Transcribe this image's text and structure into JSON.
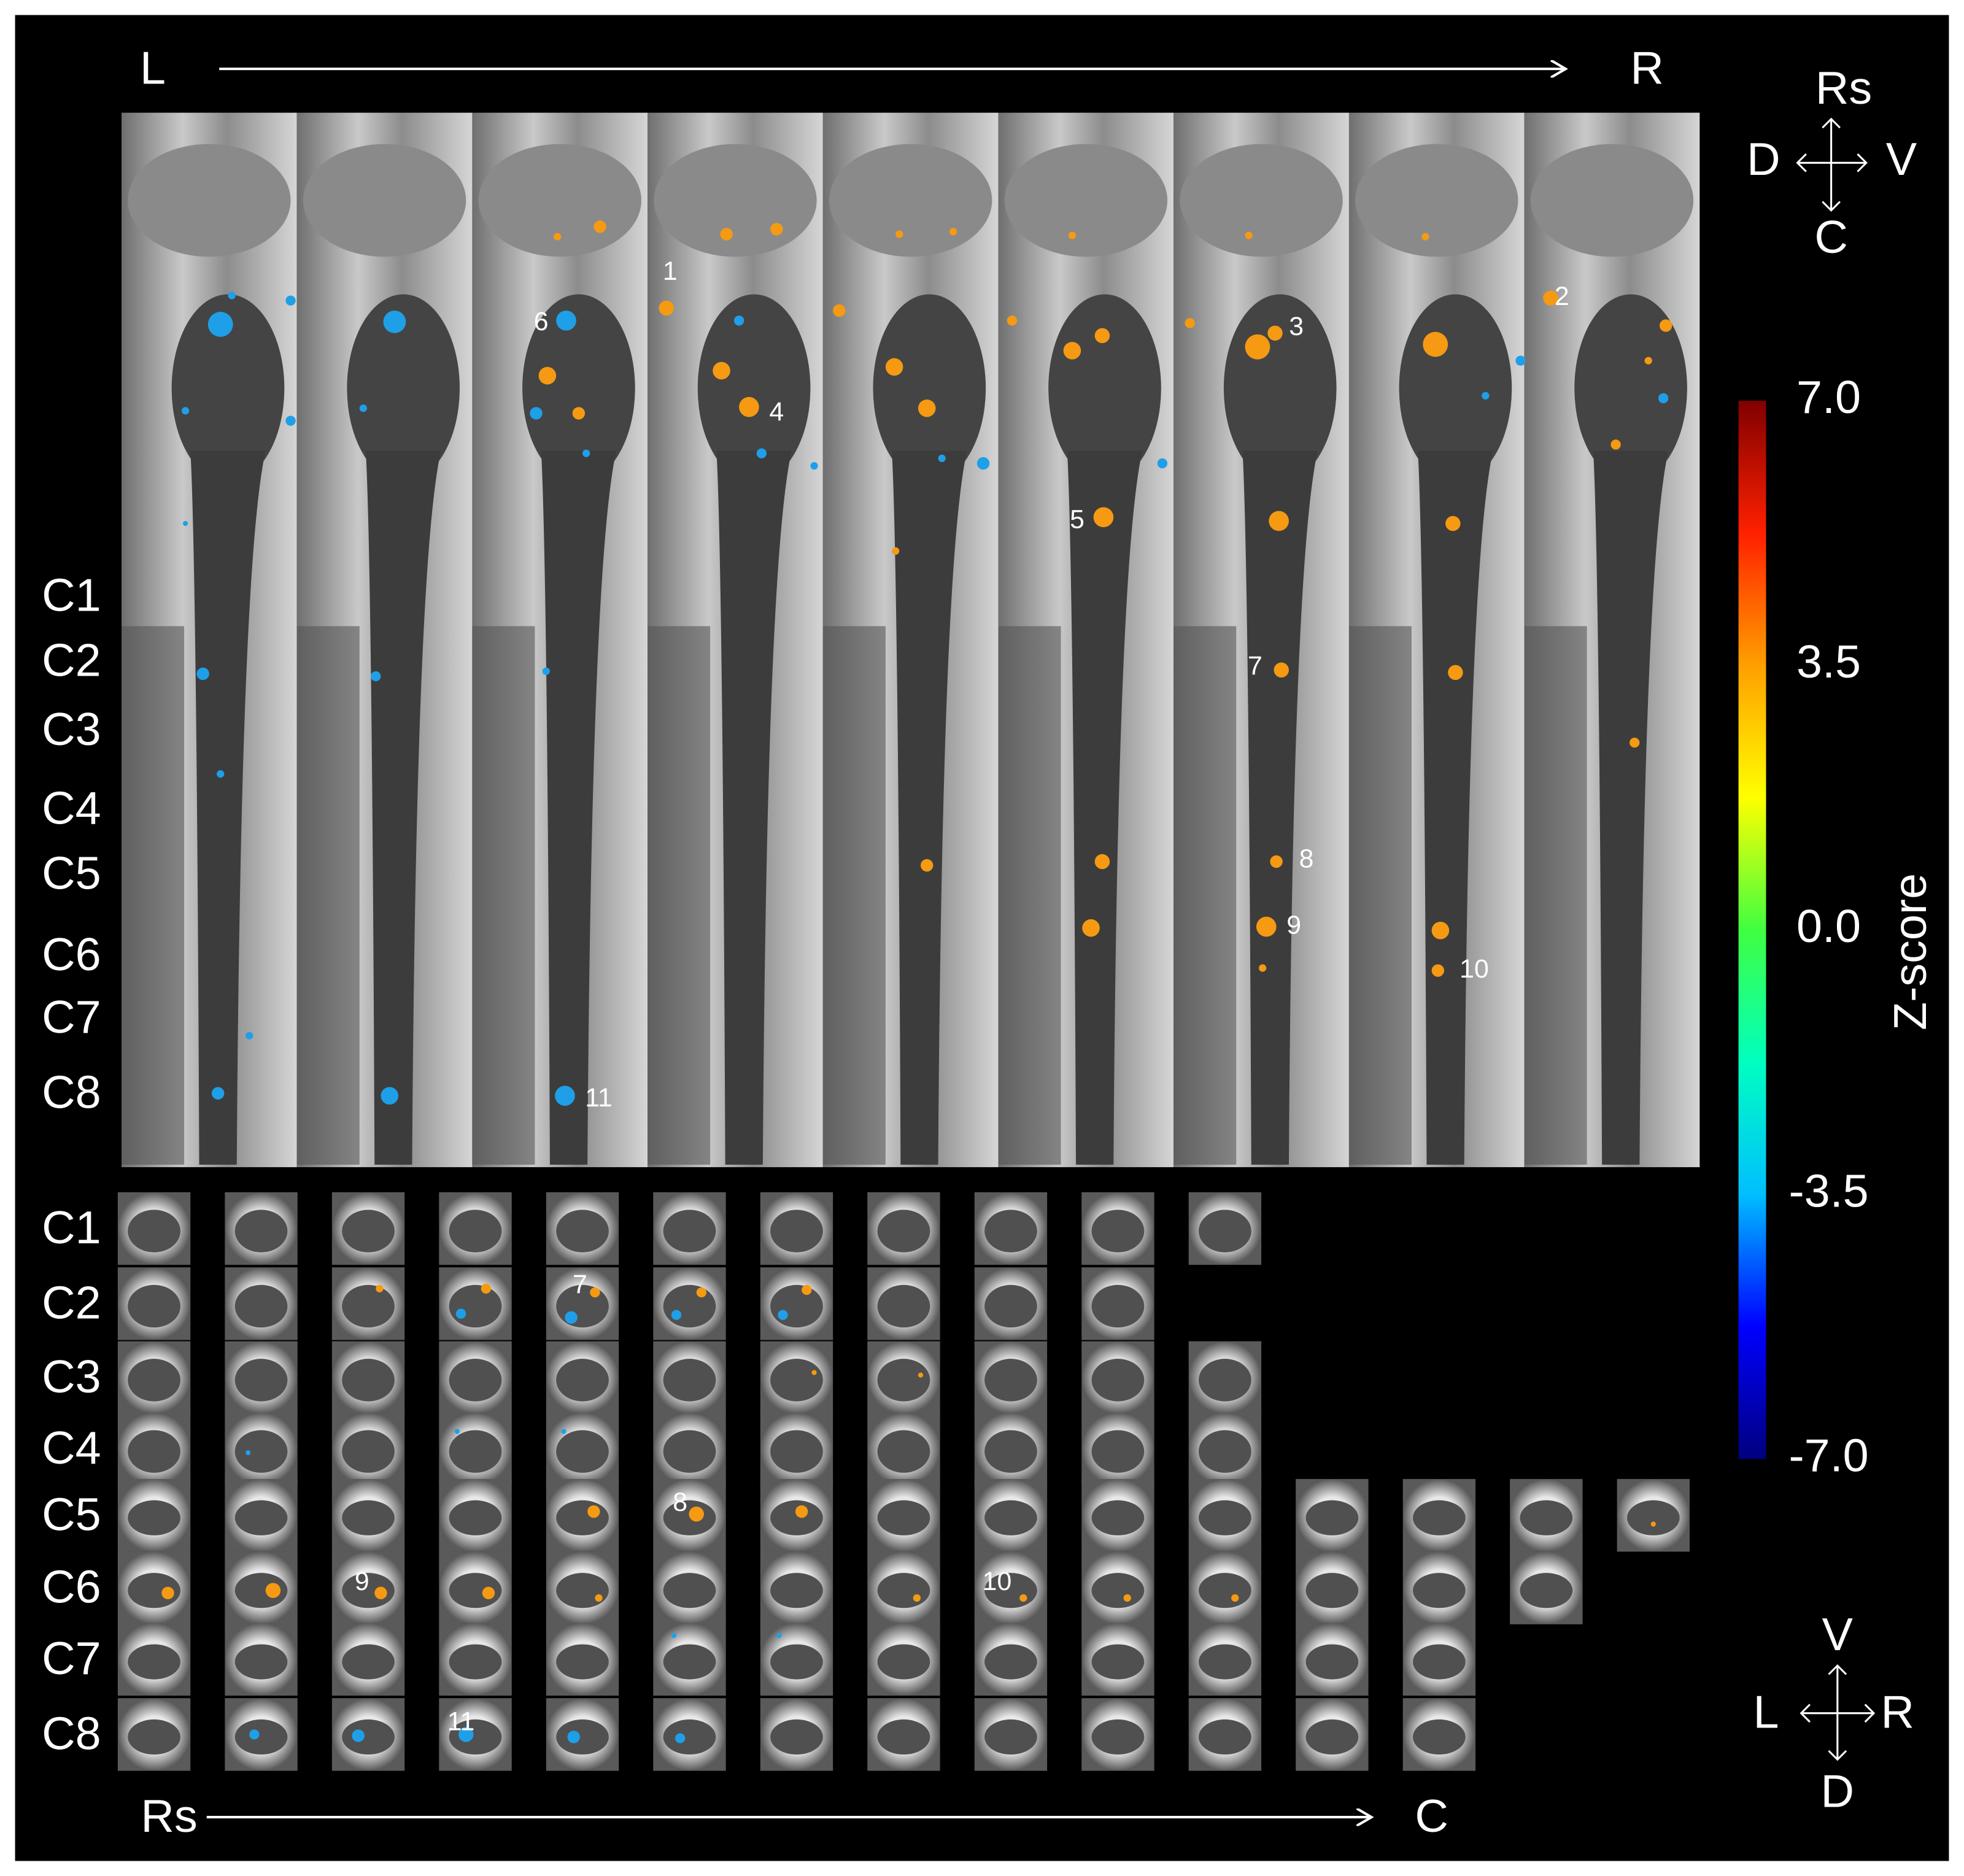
{
  "top_axis": {
    "start": "L",
    "end": "R"
  },
  "top_orientation": {
    "up": "Rs",
    "left": "D",
    "right": "V",
    "down": "C"
  },
  "sagittal": {
    "levels": [
      "C1",
      "C2",
      "C3",
      "C4",
      "C5",
      "C6",
      "C7",
      "C8"
    ],
    "clusters": [
      "1",
      "2",
      "3",
      "4",
      "5",
      "6",
      "7",
      "8",
      "9",
      "10",
      "11"
    ]
  },
  "axial": {
    "levels": [
      "C1",
      "C2",
      "C3",
      "C4",
      "C5",
      "C6",
      "C7",
      "C8"
    ],
    "clusters": [
      "7",
      "8",
      "9",
      "10",
      "11"
    ]
  },
  "bottom_axis": {
    "start": "Rs",
    "end": "C"
  },
  "bottom_orientation": {
    "up": "V",
    "left": "L",
    "right": "R",
    "down": "D"
  },
  "colorbar": {
    "title": "Z-score",
    "ticks": [
      {
        "value": 7,
        "label": "7.0"
      },
      {
        "value": 3.5,
        "label": "3.5"
      },
      {
        "value": 0,
        "label": "0.0"
      },
      {
        "value": -3.5,
        "label": "-3.5"
      },
      {
        "value": -7,
        "label": "-7.0"
      }
    ],
    "colors": [
      "#00007f",
      "#0000ff",
      "#00bfff",
      "#00ffc0",
      "#40ff40",
      "#ffff00",
      "#ff9f00",
      "#ff2000",
      "#800000"
    ]
  }
}
